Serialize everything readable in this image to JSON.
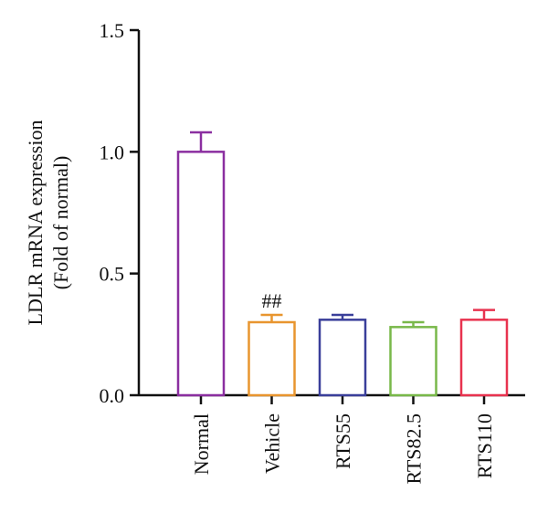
{
  "chart_data": {
    "type": "bar",
    "title": "",
    "xlabel": "",
    "ylabel": [
      "LDLR mRNA expression",
      "(Fold of normal)"
    ],
    "ylim": [
      0,
      1.5
    ],
    "yticks": [
      0.0,
      0.5,
      1.0,
      1.5
    ],
    "ytick_labels": [
      "0.0",
      "0.5",
      "1.0",
      "1.5"
    ],
    "categories": [
      "Normal",
      "Vehicle",
      "RTS55",
      "RTS82.5",
      "RTS110"
    ],
    "values": [
      1.0,
      0.3,
      0.31,
      0.28,
      0.31
    ],
    "errors": [
      0.08,
      0.03,
      0.02,
      0.02,
      0.04
    ],
    "colors": [
      "#8b2fa0",
      "#e8952f",
      "#3a3f9a",
      "#79b84a",
      "#e8334f"
    ],
    "annotations": [
      {
        "category": "Vehicle",
        "text": "##"
      }
    ],
    "grid": false,
    "legend": "none",
    "bar_fill": "#ffffff"
  }
}
